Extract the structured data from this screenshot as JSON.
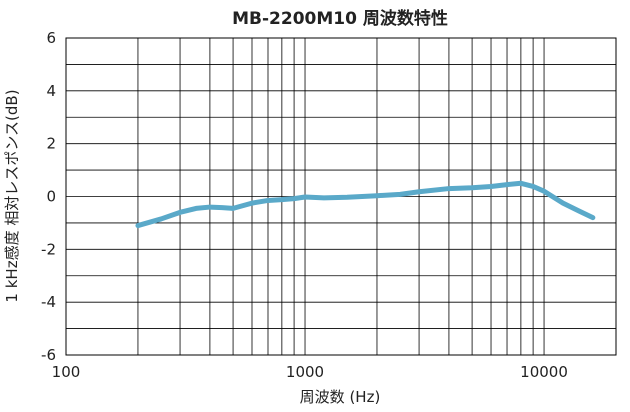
{
  "chart_data": {
    "type": "line",
    "title": "MB-2200M10 周波数特性",
    "xlabel": "周波数 (Hz)",
    "ylabel": "1 kHz感度  相対レスポンス(dB)",
    "x_scale": "log",
    "xlim": [
      100,
      20000
    ],
    "ylim": [
      -6,
      6
    ],
    "x_ticks": [
      100,
      1000,
      10000
    ],
    "x_tick_labels": [
      "100",
      "1000",
      "10000"
    ],
    "y_ticks": [
      -6,
      -4,
      -2,
      0,
      2,
      4,
      6
    ],
    "y_tick_labels": [
      "-6",
      "-4",
      "-2",
      "0",
      "2",
      "4",
      "6"
    ],
    "grid": true,
    "line_color": "#5aa9c9",
    "series": [
      {
        "x": [
          200,
          250,
          300,
          350,
          400,
          450,
          500,
          600,
          700,
          800,
          900,
          1000,
          1200,
          1500,
          2000,
          2500,
          3000,
          4000,
          5000,
          6000,
          7000,
          8000,
          9000,
          10000,
          12000,
          14000,
          16000
        ],
        "y": [
          -1.1,
          -0.85,
          -0.6,
          -0.45,
          -0.4,
          -0.42,
          -0.45,
          -0.25,
          -0.15,
          -0.12,
          -0.08,
          -0.02,
          -0.05,
          -0.03,
          0.03,
          0.08,
          0.18,
          0.3,
          0.33,
          0.38,
          0.45,
          0.5,
          0.38,
          0.2,
          -0.25,
          -0.55,
          -0.8
        ]
      }
    ]
  }
}
